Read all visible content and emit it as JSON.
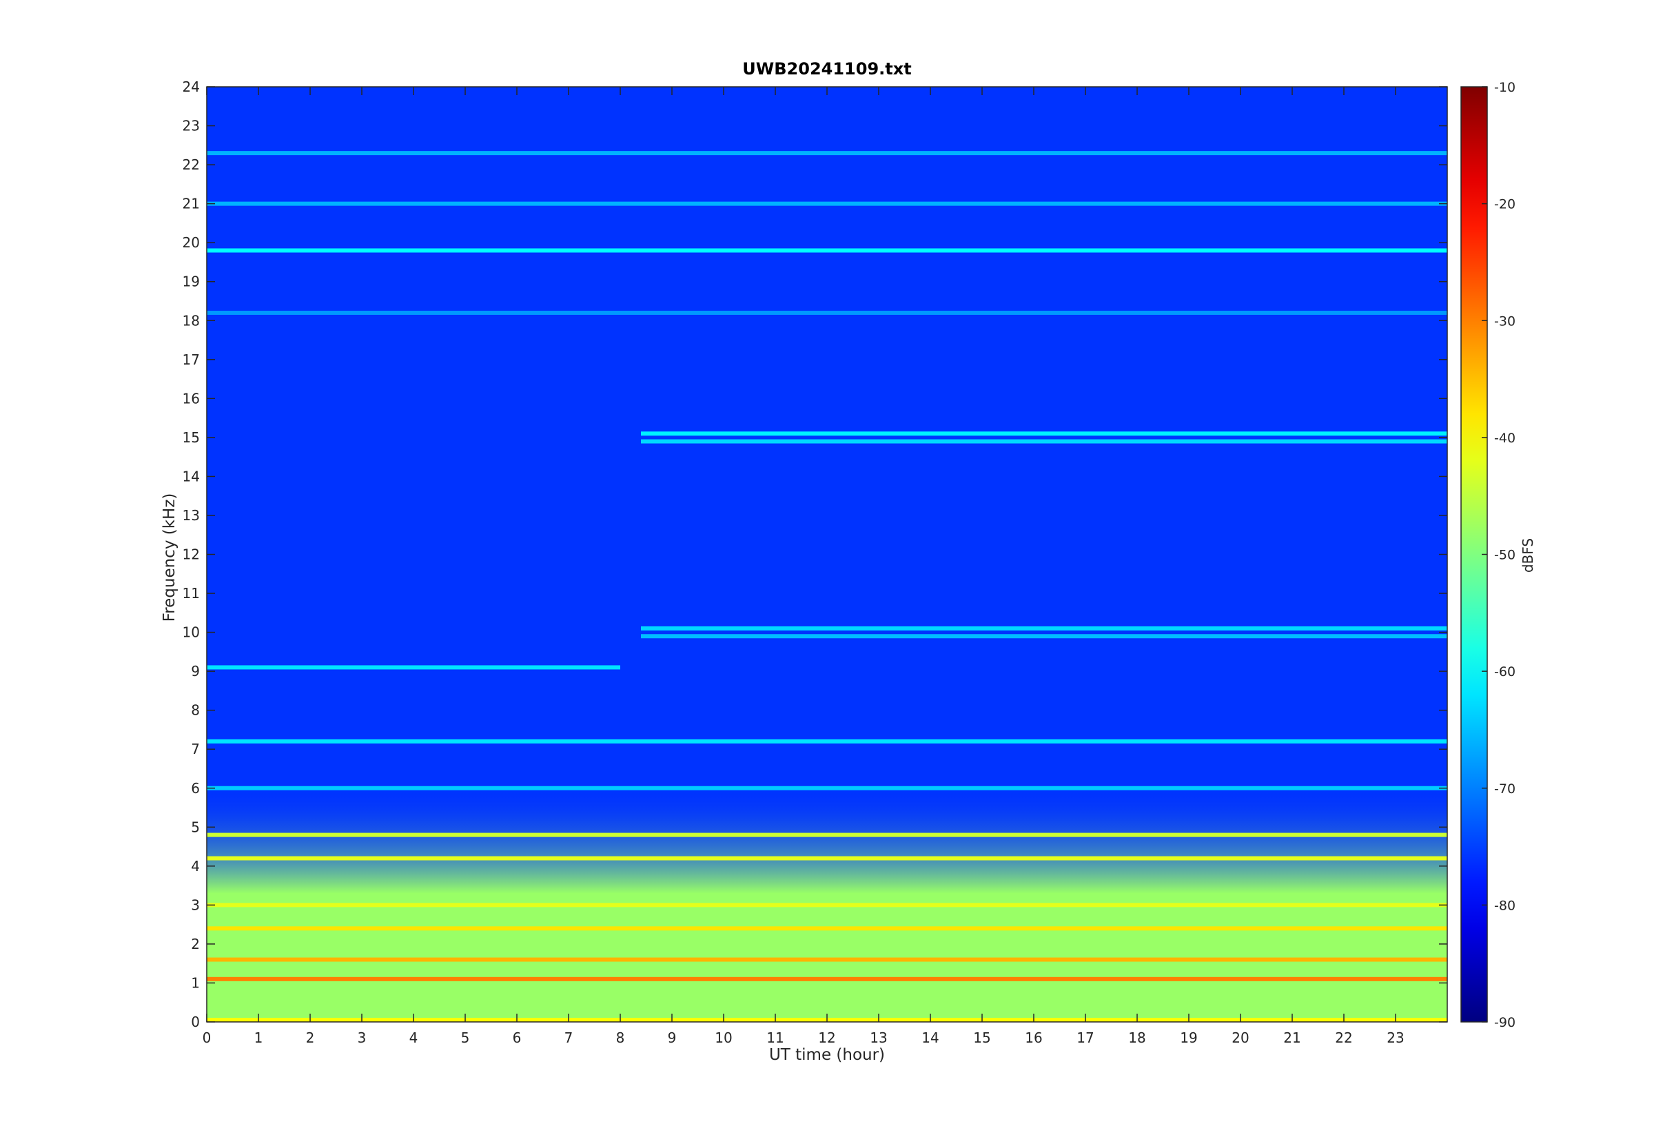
{
  "chart_data": {
    "type": "heatmap",
    "title": "UWB20241109.txt",
    "xlabel": "UT time (hour)",
    "ylabel": "Frequency (kHz)",
    "colorbar_label": "dBFS",
    "xlim": [
      0,
      24
    ],
    "ylim": [
      0,
      24
    ],
    "x_ticks": [
      0,
      1,
      2,
      3,
      4,
      5,
      6,
      7,
      8,
      9,
      10,
      11,
      12,
      13,
      14,
      15,
      16,
      17,
      18,
      19,
      20,
      21,
      22,
      23
    ],
    "y_ticks": [
      0,
      1,
      2,
      3,
      4,
      5,
      6,
      7,
      8,
      9,
      10,
      11,
      12,
      13,
      14,
      15,
      16,
      17,
      18,
      19,
      20,
      21,
      22,
      23,
      24
    ],
    "clim": [
      -90,
      -10
    ],
    "colorbar_ticks": [
      -10,
      -20,
      -30,
      -40,
      -50,
      -60,
      -70,
      -80,
      -90
    ],
    "colormap": "jet",
    "background_level_dBFS": -76,
    "low_frequency_band": {
      "freq_khz": [
        0,
        5
      ],
      "level_dBFS": -48
    },
    "lines": [
      {
        "freq_khz": 19.8,
        "level_dBFS": -60,
        "t_start": 0,
        "t_end": 24
      },
      {
        "freq_khz": 22.3,
        "level_dBFS": -66,
        "t_start": 0,
        "t_end": 24
      },
      {
        "freq_khz": 21.0,
        "level_dBFS": -66,
        "t_start": 0,
        "t_end": 24
      },
      {
        "freq_khz": 18.2,
        "level_dBFS": -68,
        "t_start": 0,
        "t_end": 24
      },
      {
        "freq_khz": 15.1,
        "level_dBFS": -61,
        "t_start": 8.4,
        "t_end": 24
      },
      {
        "freq_khz": 14.9,
        "level_dBFS": -63,
        "t_start": 8.4,
        "t_end": 24
      },
      {
        "freq_khz": 10.1,
        "level_dBFS": -63,
        "t_start": 8.4,
        "t_end": 24
      },
      {
        "freq_khz": 9.9,
        "level_dBFS": -65,
        "t_start": 8.4,
        "t_end": 24
      },
      {
        "freq_khz": 9.1,
        "level_dBFS": -62,
        "t_start": 0,
        "t_end": 8
      },
      {
        "freq_khz": 7.2,
        "level_dBFS": -62,
        "t_start": 0,
        "t_end": 24
      },
      {
        "freq_khz": 6.0,
        "level_dBFS": -64,
        "t_start": 0,
        "t_end": 24
      },
      {
        "freq_khz": 4.8,
        "level_dBFS": -44,
        "t_start": 0,
        "t_end": 24
      },
      {
        "freq_khz": 4.2,
        "level_dBFS": -42,
        "t_start": 0,
        "t_end": 24
      },
      {
        "freq_khz": 3.0,
        "level_dBFS": -42,
        "t_start": 0,
        "t_end": 24
      },
      {
        "freq_khz": 2.4,
        "level_dBFS": -38,
        "t_start": 0,
        "t_end": 24
      },
      {
        "freq_khz": 1.6,
        "level_dBFS": -34,
        "t_start": 0,
        "t_end": 24
      },
      {
        "freq_khz": 1.1,
        "level_dBFS": -30,
        "t_start": 0,
        "t_end": 24
      },
      {
        "freq_khz": 0.05,
        "level_dBFS": -40,
        "t_start": 0,
        "t_end": 24
      }
    ],
    "grid": false
  }
}
